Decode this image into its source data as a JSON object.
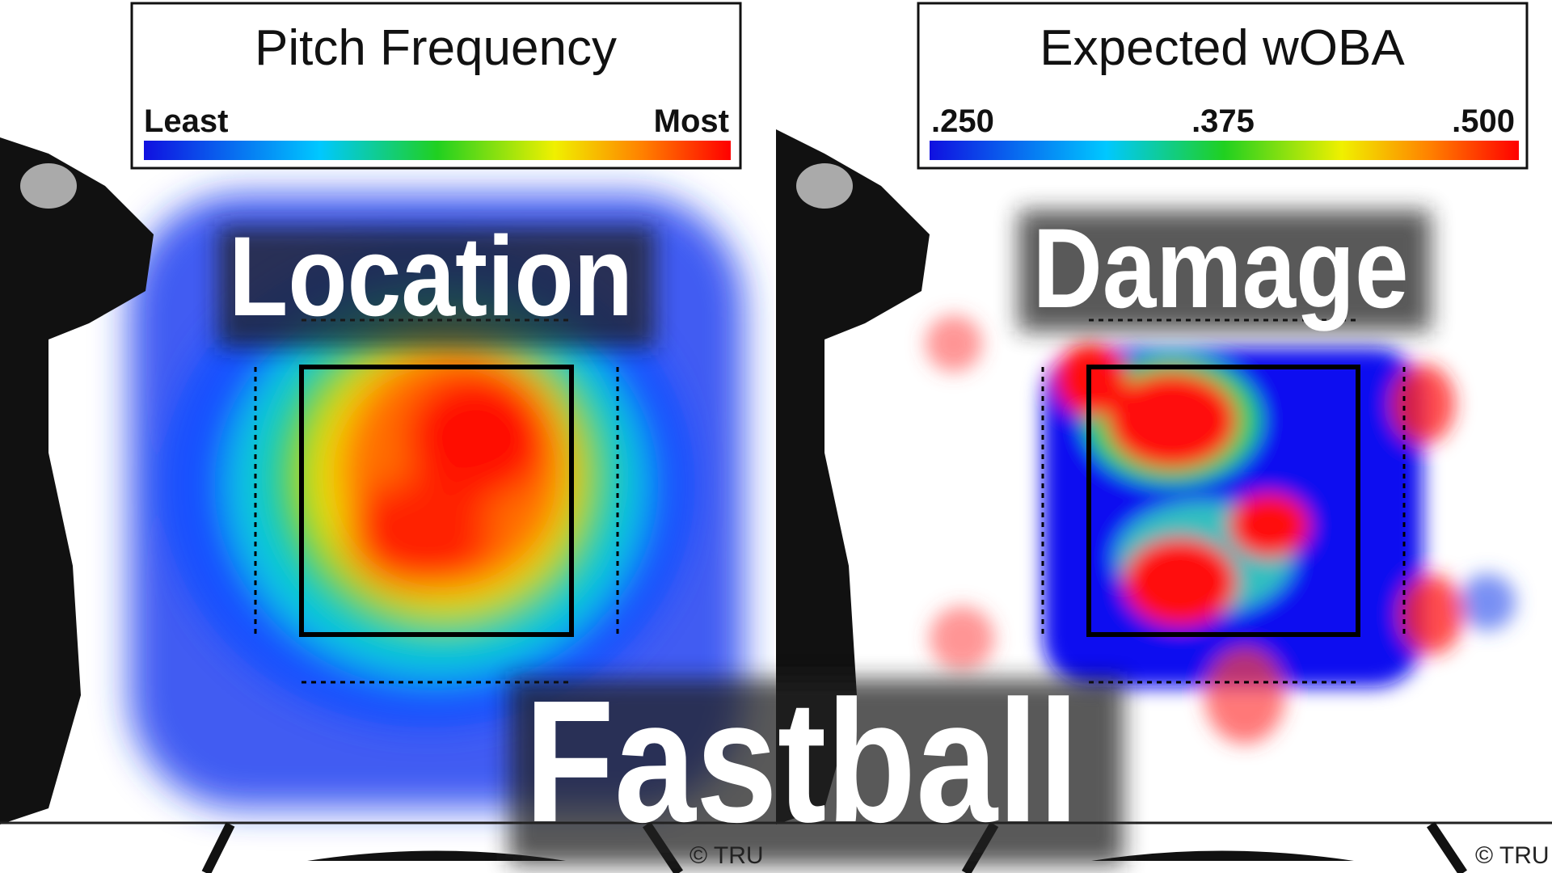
{
  "panels": [
    {
      "legend": {
        "title": "Pitch Frequency",
        "labels": [
          "Least",
          "Most"
        ]
      },
      "overlay": "Location",
      "credit": "© TRU"
    },
    {
      "legend": {
        "title": "Expected wOBA",
        "labels": [
          ".250",
          ".375",
          ".500"
        ]
      },
      "overlay": "Damage",
      "credit": "© TRU"
    }
  ],
  "banner": "Fastball"
}
